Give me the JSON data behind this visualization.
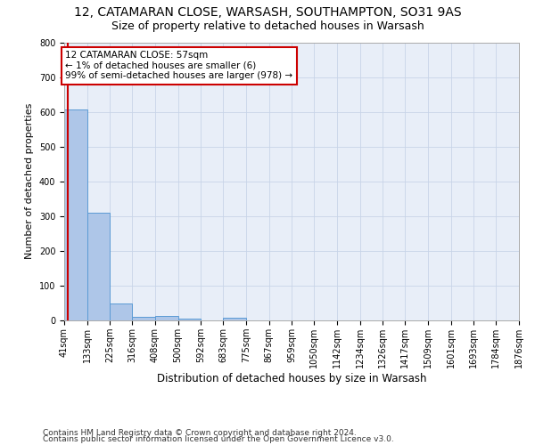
{
  "title": "12, CATAMARAN CLOSE, WARSASH, SOUTHAMPTON, SO31 9AS",
  "subtitle": "Size of property relative to detached houses in Warsash",
  "xlabel": "Distribution of detached houses by size in Warsash",
  "ylabel": "Number of detached properties",
  "bar_values": [
    607,
    310,
    48,
    10,
    13,
    5,
    0,
    8,
    0,
    0,
    0,
    0,
    0,
    0,
    0,
    0,
    0,
    0,
    0,
    0
  ],
  "bin_edges": [
    41,
    133,
    225,
    316,
    408,
    500,
    592,
    683,
    775,
    867,
    959,
    1050,
    1142,
    1234,
    1326,
    1417,
    1509,
    1601,
    1693,
    1784,
    1876
  ],
  "bar_color": "#aec6e8",
  "bar_edge_color": "#5b9bd5",
  "grid_color": "#c8d4e8",
  "bg_color": "#e8eef8",
  "annotation_line1": "12 CATAMARAN CLOSE: 57sqm",
  "annotation_line2": "← 1% of detached houses are smaller (6)",
  "annotation_line3": "99% of semi-detached houses are larger (978) →",
  "annotation_box_color": "#cc0000",
  "red_line_x": 57,
  "ylim": [
    0,
    800
  ],
  "yticks": [
    0,
    100,
    200,
    300,
    400,
    500,
    600,
    700,
    800
  ],
  "footer_line1": "Contains HM Land Registry data © Crown copyright and database right 2024.",
  "footer_line2": "Contains public sector information licensed under the Open Government Licence v3.0.",
  "title_fontsize": 10,
  "subtitle_fontsize": 9,
  "xlabel_fontsize": 8.5,
  "ylabel_fontsize": 8,
  "tick_fontsize": 7,
  "annot_fontsize": 7.5,
  "footer_fontsize": 6.5
}
